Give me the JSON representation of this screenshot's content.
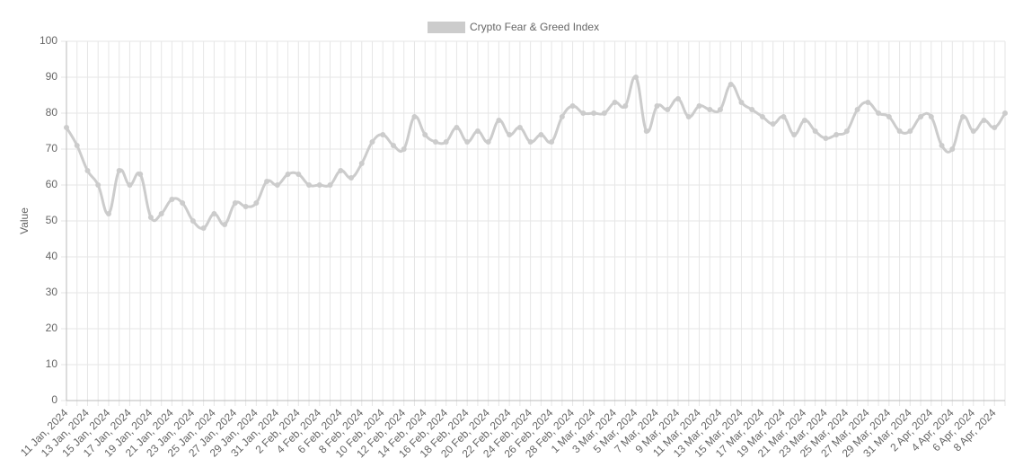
{
  "chart_data": {
    "type": "line",
    "categories": [
      "11 Jan, 2024",
      null,
      "13 Jan, 2024",
      null,
      "15 Jan, 2024",
      null,
      "17 Jan, 2024",
      null,
      "19 Jan, 2024",
      null,
      "21 Jan, 2024",
      null,
      "23 Jan, 2024",
      null,
      "25 Jan, 2024",
      null,
      "27 Jan, 2024",
      null,
      "29 Jan, 2024",
      null,
      "31 Jan, 2024",
      null,
      "2 Feb, 2024",
      null,
      "4 Feb, 2024",
      null,
      "6 Feb, 2024",
      null,
      "8 Feb, 2024",
      null,
      "10 Feb, 2024",
      null,
      "12 Feb, 2024",
      null,
      "14 Feb, 2024",
      null,
      "16 Feb, 2024",
      null,
      "18 Feb, 2024",
      null,
      "20 Feb, 2024",
      null,
      "22 Feb, 2024",
      null,
      "24 Feb, 2024",
      null,
      "26 Feb, 2024",
      null,
      "28 Feb, 2024",
      null,
      "1 Mar, 2024",
      null,
      "3 Mar, 2024",
      null,
      "5 Mar, 2024",
      null,
      "7 Mar, 2024",
      null,
      "9 Mar, 2024",
      null,
      "11 Mar, 2024",
      null,
      "13 Mar, 2024",
      null,
      "15 Mar, 2024",
      null,
      "17 Mar, 2024",
      null,
      "19 Mar, 2024",
      null,
      "21 Mar, 2024",
      null,
      "23 Mar, 2024",
      null,
      "25 Mar, 2024",
      null,
      "27 Mar, 2024",
      null,
      "29 Mar, 2024",
      null,
      "31 Mar, 2024",
      null,
      "2 Apr, 2024",
      null,
      "4 Apr, 2024",
      null,
      "6 Apr, 2024",
      null,
      "8 Apr, 2024",
      null
    ],
    "series": [
      {
        "name": "Crypto Fear & Greed Index",
        "color": "#cccccc",
        "values": [
          76,
          71,
          64,
          60,
          52,
          64,
          60,
          63,
          51,
          52,
          56,
          55,
          50,
          48,
          52,
          49,
          55,
          54,
          55,
          61,
          60,
          63,
          63,
          60,
          60,
          60,
          64,
          62,
          66,
          72,
          74,
          71,
          70,
          79,
          74,
          72,
          72,
          76,
          72,
          75,
          72,
          78,
          74,
          76,
          72,
          74,
          72,
          79,
          82,
          80,
          80,
          80,
          83,
          82,
          90,
          75,
          82,
          81,
          84,
          79,
          82,
          81,
          81,
          88,
          83,
          81,
          79,
          77,
          79,
          74,
          78,
          75,
          73,
          74,
          75,
          81,
          83,
          80,
          79,
          75,
          75,
          79,
          79,
          71,
          70,
          79,
          75,
          78,
          76,
          80
        ]
      }
    ],
    "y_label": "Value",
    "ylim": [
      0,
      100
    ],
    "yticks": [
      0,
      10,
      20,
      30,
      40,
      50,
      60,
      70,
      80,
      90,
      100
    ],
    "grid": true
  }
}
